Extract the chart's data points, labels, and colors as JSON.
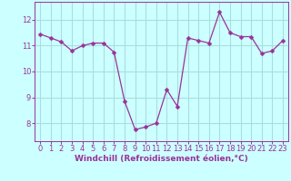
{
  "x": [
    0,
    1,
    2,
    3,
    4,
    5,
    6,
    7,
    8,
    9,
    10,
    11,
    12,
    13,
    14,
    15,
    16,
    17,
    18,
    19,
    20,
    21,
    22,
    23
  ],
  "y": [
    11.45,
    11.3,
    11.15,
    10.8,
    11.0,
    11.1,
    11.1,
    10.75,
    8.85,
    7.75,
    7.85,
    8.0,
    9.3,
    8.65,
    11.3,
    11.2,
    11.1,
    12.3,
    11.5,
    11.35,
    11.35,
    10.7,
    10.8,
    11.2
  ],
  "x_labels": [
    "0",
    "1",
    "2",
    "3",
    "4",
    "5",
    "6",
    "7",
    "8",
    "9",
    "10",
    "11",
    "12",
    "13",
    "14",
    "15",
    "16",
    "17",
    "18",
    "19",
    "20",
    "21",
    "22",
    "23"
  ],
  "xlabel": "Windchill (Refroidissement éolien,°C)",
  "yticks": [
    8,
    9,
    10,
    11,
    12
  ],
  "ylim": [
    7.3,
    12.7
  ],
  "xlim": [
    -0.5,
    23.5
  ],
  "line_color": "#993399",
  "marker": "D",
  "marker_size": 2.5,
  "line_width": 0.9,
  "bg_color": "#ccffff",
  "grid_color": "#aadddd",
  "tick_color": "#993399",
  "label_color": "#993399",
  "font_size_tick": 6,
  "font_size_xlabel": 6.5
}
